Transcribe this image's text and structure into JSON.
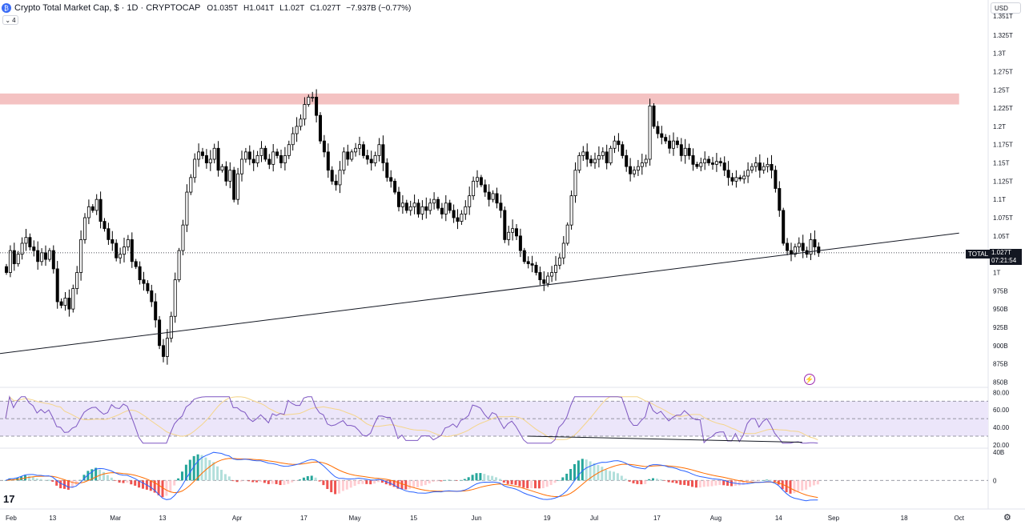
{
  "legend": {
    "title": "Crypto Total Market Cap, $ · 1D · CRYPTOCAP",
    "open": "O1.035T",
    "high": "H1.041T",
    "low": "L1.02T",
    "close": "C1.027T",
    "change": "−7.937B (−0.77%)",
    "collapse_count": "4"
  },
  "currency": "USD",
  "price_tag": {
    "name": "TOTAL",
    "price": "1.027T",
    "countdown": "07:21:54"
  },
  "colors": {
    "up": "#ffffff",
    "down": "#000000",
    "resistance": "#f4c2c2",
    "rsi_band": "#ece6fa",
    "rsi_line": "#7e57c2",
    "rsi_ma": "#f5d58a",
    "macd_line": "#2962ff",
    "signal_line": "#ff6d00",
    "hist_up_strong": "#26a69a",
    "hist_up_weak": "#b2dfdb",
    "hist_down_strong": "#ef5350",
    "hist_down_weak": "#ffcdd2"
  },
  "chart_data": {
    "type": "candlestick",
    "price_axis": {
      "ticks": [
        "1.351T",
        "1.325T",
        "1.3T",
        "1.275T",
        "1.25T",
        "1.225T",
        "1.2T",
        "1.175T",
        "1.15T",
        "1.125T",
        "1.1T",
        "1.075T",
        "1.05T",
        "1T",
        "975B",
        "950B",
        "925B",
        "900B",
        "875B",
        "850B"
      ],
      "tick_values": [
        1351,
        1325,
        1300,
        1275,
        1250,
        1225,
        1200,
        1175,
        1150,
        1125,
        1100,
        1075,
        1050,
        1000,
        975,
        950,
        925,
        900,
        875,
        850
      ],
      "unit": "B",
      "range": [
        845,
        1362
      ]
    },
    "time_axis": {
      "labels": [
        "Feb",
        "13",
        "Mar",
        "13",
        "Apr",
        "17",
        "May",
        "15",
        "Jun",
        "19",
        "Jul",
        "17",
        "Aug",
        "14",
        "Sep",
        "18",
        "Oct"
      ],
      "label_days": [
        0,
        12,
        28,
        40,
        59,
        76,
        89,
        104,
        120,
        138,
        150,
        166,
        181,
        197,
        211,
        229,
        243
      ],
      "start": "Feb 1",
      "end": "Oct 5"
    },
    "candles_close": [
      1000,
      1030,
      1012,
      1025,
      1040,
      1048,
      1035,
      1030,
      1015,
      1027,
      1018,
      1030,
      1005,
      960,
      955,
      965,
      950,
      978,
      1000,
      1045,
      1075,
      1090,
      1085,
      1100,
      1070,
      1060,
      1045,
      1040,
      1020,
      1025,
      1035,
      1045,
      1015,
      1008,
      990,
      985,
      975,
      960,
      935,
      900,
      885,
      910,
      940,
      990,
      1030,
      1065,
      1110,
      1130,
      1155,
      1165,
      1160,
      1150,
      1155,
      1170,
      1140,
      1145,
      1125,
      1140,
      1100,
      1135,
      1155,
      1165,
      1155,
      1150,
      1160,
      1170,
      1155,
      1148,
      1165,
      1160,
      1150,
      1160,
      1175,
      1190,
      1200,
      1210,
      1230,
      1240,
      1240,
      1215,
      1180,
      1165,
      1140,
      1125,
      1120,
      1140,
      1165,
      1155,
      1165,
      1170,
      1175,
      1160,
      1155,
      1150,
      1160,
      1175,
      1150,
      1130,
      1125,
      1110,
      1090,
      1095,
      1085,
      1090,
      1095,
      1080,
      1090,
      1085,
      1095,
      1100,
      1088,
      1080,
      1095,
      1085,
      1075,
      1070,
      1080,
      1090,
      1105,
      1125,
      1130,
      1120,
      1110,
      1100,
      1108,
      1095,
      1085,
      1045,
      1055,
      1060,
      1050,
      1030,
      1015,
      1012,
      1010,
      1000,
      990,
      985,
      995,
      1000,
      1010,
      1020,
      1040,
      1065,
      1105,
      1140,
      1160,
      1165,
      1155,
      1150,
      1155,
      1160,
      1165,
      1150,
      1170,
      1180,
      1175,
      1160,
      1145,
      1135,
      1140,
      1145,
      1150,
      1155,
      1228,
      1200,
      1190,
      1185,
      1180,
      1170,
      1180,
      1175,
      1160,
      1170,
      1160,
      1148,
      1145,
      1150,
      1155,
      1150,
      1148,
      1152,
      1150,
      1140,
      1130,
      1125,
      1130,
      1128,
      1132,
      1140,
      1145,
      1150,
      1140,
      1145,
      1148,
      1140,
      1115,
      1085,
      1040,
      1030,
      1025,
      1035,
      1040,
      1030,
      1025,
      1045,
      1035,
      1027
    ],
    "trendline": {
      "from": {
        "day": -3,
        "value": 888
      },
      "to": {
        "day": 243,
        "value": 1054
      }
    },
    "resistance_zone": {
      "from_day": -3,
      "to_day": 243,
      "low": 1230,
      "high": 1245
    },
    "rsi": {
      "levels": [
        70,
        50,
        30
      ],
      "axis_ticks": [
        "80.00",
        "60.00",
        "40.00",
        "20.00"
      ],
      "axis_values": [
        80,
        60,
        40,
        20
      ],
      "range": [
        19,
        83
      ]
    },
    "macd": {
      "axis_ticks": [
        "40B",
        "0"
      ],
      "axis_values": [
        40,
        0
      ],
      "range": [
        -38,
        42
      ]
    }
  }
}
